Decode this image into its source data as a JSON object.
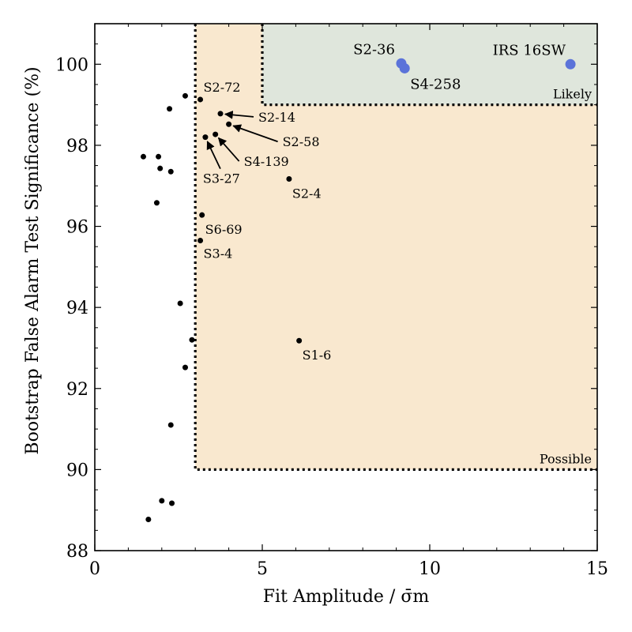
{
  "chart_data": {
    "type": "scatter",
    "xlabel": "Fit Amplitude / σ̄m",
    "ylabel": "Bootstrap False Alarm Test Significance (%)",
    "xlim": [
      0,
      15
    ],
    "ylim": [
      88,
      101
    ],
    "xticks": [
      0,
      5,
      10,
      15
    ],
    "yticks": [
      88,
      90,
      92,
      94,
      96,
      98,
      100
    ],
    "grid": false,
    "regions": [
      {
        "label": "Possible",
        "x_min": 3,
        "x_max": 15,
        "y_min": 90,
        "y_max": 101,
        "fill": "#f9e8cf"
      },
      {
        "label": "Likely",
        "x_min": 5,
        "x_max": 15,
        "y_min": 99,
        "y_max": 101,
        "fill": "#dfe6dc"
      }
    ],
    "points": [
      {
        "x": 1.45,
        "y": 97.72,
        "label": ""
      },
      {
        "x": 1.9,
        "y": 97.72,
        "label": ""
      },
      {
        "x": 1.95,
        "y": 97.43,
        "label": ""
      },
      {
        "x": 2.27,
        "y": 97.35,
        "label": ""
      },
      {
        "x": 1.85,
        "y": 96.58,
        "label": ""
      },
      {
        "x": 2.23,
        "y": 98.9,
        "label": ""
      },
      {
        "x": 2.7,
        "y": 99.22,
        "label": ""
      },
      {
        "x": 3.15,
        "y": 99.13,
        "label": "S2-72"
      },
      {
        "x": 3.75,
        "y": 98.78,
        "label": "S2-14"
      },
      {
        "x": 4.0,
        "y": 98.52,
        "label": "S2-58"
      },
      {
        "x": 3.6,
        "y": 98.27,
        "label": "S4-139"
      },
      {
        "x": 3.3,
        "y": 98.2,
        "label": "S3-27"
      },
      {
        "x": 5.8,
        "y": 97.17,
        "label": "S2-4"
      },
      {
        "x": 3.2,
        "y": 96.28,
        "label": "S6-69"
      },
      {
        "x": 3.15,
        "y": 95.65,
        "label": "S3-4"
      },
      {
        "x": 2.55,
        "y": 94.1,
        "label": ""
      },
      {
        "x": 2.9,
        "y": 93.2,
        "label": ""
      },
      {
        "x": 6.1,
        "y": 93.18,
        "label": "S1-6"
      },
      {
        "x": 2.7,
        "y": 92.52,
        "label": ""
      },
      {
        "x": 2.27,
        "y": 91.1,
        "label": ""
      },
      {
        "x": 2.0,
        "y": 89.23,
        "label": ""
      },
      {
        "x": 2.3,
        "y": 89.17,
        "label": ""
      },
      {
        "x": 1.6,
        "y": 88.77,
        "label": ""
      }
    ],
    "highlight_points": [
      {
        "x": 9.15,
        "y": 100.02,
        "label": "S2-36",
        "color": "#5b73d9"
      },
      {
        "x": 9.25,
        "y": 99.9,
        "label": "S4-258",
        "color": "#5b73d9"
      },
      {
        "x": 14.2,
        "y": 100.0,
        "label": "IRS 16SW",
        "color": "#5b73d9"
      }
    ]
  }
}
